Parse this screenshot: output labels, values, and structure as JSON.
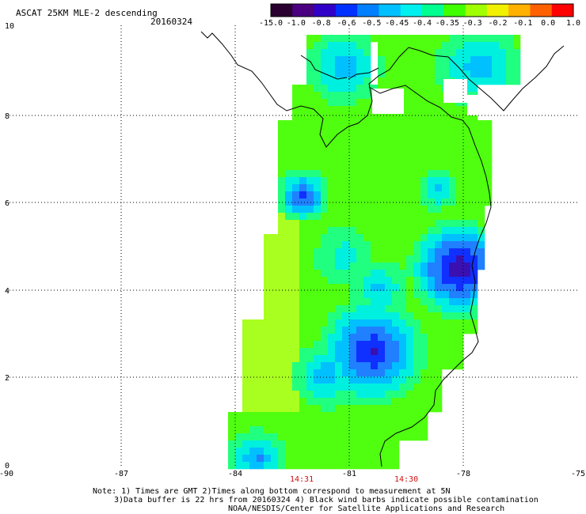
{
  "title": "ASCAT 25KM MLE-2 descending",
  "date": "20160324",
  "colorbar": {
    "colors": [
      "#2a0030",
      "#4a0080",
      "#3000c8",
      "#0030ff",
      "#0080ff",
      "#00c0ff",
      "#00f0f0",
      "#00ff90",
      "#40ff00",
      "#a0ff00",
      "#f0f000",
      "#ffb000",
      "#ff6000",
      "#ff0000"
    ],
    "labels": [
      "-15.0",
      "-1.0",
      "-0.8",
      "-0.6",
      "-0.5",
      "-0.45",
      "-0.4",
      "-0.35",
      "-0.3",
      "-0.2",
      "-0.1",
      "0.0",
      "1.0"
    ]
  },
  "axes": {
    "lon_labels": [
      "-90",
      "-87",
      "-84",
      "-81",
      "-78",
      "-75"
    ],
    "lat_labels": [
      "10",
      "8",
      "6",
      "4",
      "2",
      "0"
    ]
  },
  "times": [
    "14:31",
    "14:30"
  ],
  "notes": [
    "Note: 1) Times are GMT 2)Times along bottom correspond to measurement at 5N",
    "3)Data buffer is 22 hrs from 20160324 4) Black wind barbs indicate possible contamination",
    "NOAA/NESDIS/Center for Satellite Applications and Research"
  ]
}
